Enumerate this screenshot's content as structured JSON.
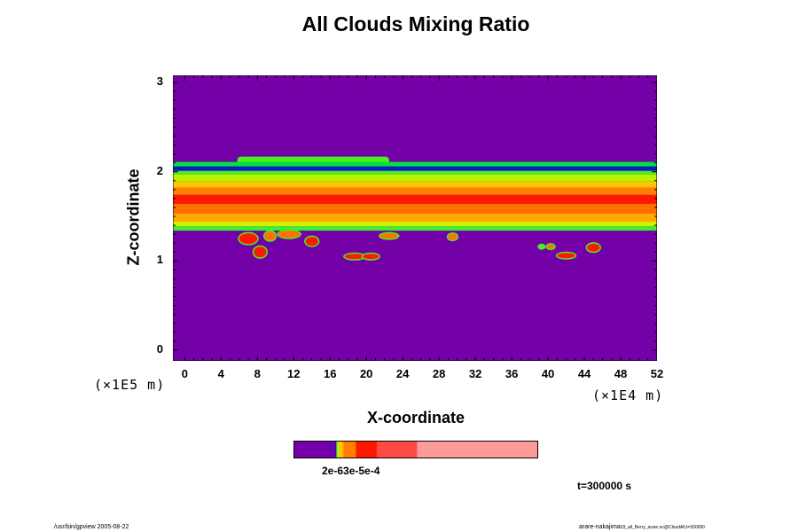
{
  "chart_data": {
    "type": "heatmap",
    "title": "All Clouds Mixing Ratio",
    "xlabel": "X-coordinate",
    "ylabel": "Z-coordinate",
    "x_unit": "(×1E4 m)",
    "y_unit": "(×1E5 m)",
    "xlim": [
      -1.3,
      52
    ],
    "ylim": [
      -0.12,
      3.08
    ],
    "x_ticks": [
      "0",
      "4",
      "8",
      "12",
      "16",
      "20",
      "24",
      "28",
      "32",
      "36",
      "40",
      "44",
      "48",
      "52"
    ],
    "x_tick_values": [
      0,
      4,
      8,
      12,
      16,
      20,
      24,
      28,
      32,
      36,
      40,
      44,
      48,
      52
    ],
    "y_ticks": [
      "0",
      "1",
      "2",
      "3"
    ],
    "y_tick_values": [
      0,
      1,
      2,
      3
    ],
    "background_color": "#7400a8",
    "layer_bands": [
      {
        "z_bottom": 2.0,
        "z_top": 2.11,
        "color": "#00e23c"
      },
      {
        "z_bottom": 2.0,
        "z_top": 2.06,
        "color": "#0e1aca"
      },
      {
        "z_bottom": 1.97,
        "z_top": 2.01,
        "color": "#48f020"
      },
      {
        "z_bottom": 1.89,
        "z_top": 1.97,
        "color": "#b9f200"
      },
      {
        "z_bottom": 1.82,
        "z_top": 1.89,
        "color": "#ffc400"
      },
      {
        "z_bottom": 1.74,
        "z_top": 1.82,
        "color": "#ff7f00"
      },
      {
        "z_bottom": 1.64,
        "z_top": 1.74,
        "color": "#ff1800"
      },
      {
        "z_bottom": 1.53,
        "z_top": 1.64,
        "color": "#ff7000"
      },
      {
        "z_bottom": 1.44,
        "z_top": 1.53,
        "color": "#ffaa00"
      },
      {
        "z_bottom": 1.39,
        "z_top": 1.44,
        "color": "#d8f000"
      },
      {
        "z_bottom": 1.34,
        "z_top": 1.39,
        "color": "#40ee30"
      }
    ],
    "upper_cloud": {
      "x_start": 5.8,
      "x_end": 22.5,
      "z_bottom": 2.07,
      "z_top": 2.17,
      "color": "#48f020"
    },
    "cloud_blobs": [
      {
        "x": 7.0,
        "z": 1.25,
        "w": 2.0,
        "h": 0.12,
        "color": "#ff1800"
      },
      {
        "x": 8.3,
        "z": 1.1,
        "w": 1.4,
        "h": 0.12,
        "color": "#ff1800"
      },
      {
        "x": 9.4,
        "z": 1.28,
        "w": 1.2,
        "h": 0.1,
        "color": "#ff7000"
      },
      {
        "x": 11.5,
        "z": 1.3,
        "w": 2.4,
        "h": 0.08,
        "color": "#ff7000"
      },
      {
        "x": 14.0,
        "z": 1.22,
        "w": 1.4,
        "h": 0.1,
        "color": "#ff1800"
      },
      {
        "x": 18.7,
        "z": 1.05,
        "w": 2.2,
        "h": 0.06,
        "color": "#ff1800"
      },
      {
        "x": 20.5,
        "z": 1.05,
        "w": 1.8,
        "h": 0.06,
        "color": "#ff1800"
      },
      {
        "x": 22.5,
        "z": 1.28,
        "w": 2.0,
        "h": 0.06,
        "color": "#ff7000"
      },
      {
        "x": 29.5,
        "z": 1.27,
        "w": 1.0,
        "h": 0.07,
        "color": "#ff7000"
      },
      {
        "x": 39.3,
        "z": 1.16,
        "w": 0.6,
        "h": 0.04,
        "color": "#48f020"
      },
      {
        "x": 40.3,
        "z": 1.16,
        "w": 0.8,
        "h": 0.05,
        "color": "#ff7000"
      },
      {
        "x": 42.0,
        "z": 1.06,
        "w": 2.0,
        "h": 0.06,
        "color": "#ff1800"
      },
      {
        "x": 45.0,
        "z": 1.15,
        "w": 1.4,
        "h": 0.09,
        "color": "#ff1800"
      }
    ],
    "colorbar": {
      "label": "2e-63e-5e-4",
      "segments": [
        {
          "fraction": 0.17,
          "color": "#7400a8"
        },
        {
          "fraction": 0.005,
          "color": "#2010c0"
        },
        {
          "fraction": 0.005,
          "color": "#40ee30"
        },
        {
          "fraction": 0.005,
          "color": "#d8f000"
        },
        {
          "fraction": 0.014,
          "color": "#ffc400"
        },
        {
          "fraction": 0.006,
          "color": "#ffaa00"
        },
        {
          "fraction": 0.05,
          "color": "#ff7f00"
        },
        {
          "fraction": 0.085,
          "color": "#ff1800"
        },
        {
          "fraction": 0.165,
          "color": "#ff4a44"
        },
        {
          "fraction": 0.495,
          "color": "#ff9a9a"
        }
      ]
    },
    "time_label": "t=300000 s"
  },
  "footer": {
    "left": "/usr/bin/gpview 2005-08-22",
    "right_main": "arare-nakajima",
    "right_small": "03_all_Berry_arare.nc@CloudAll,t=300000"
  }
}
